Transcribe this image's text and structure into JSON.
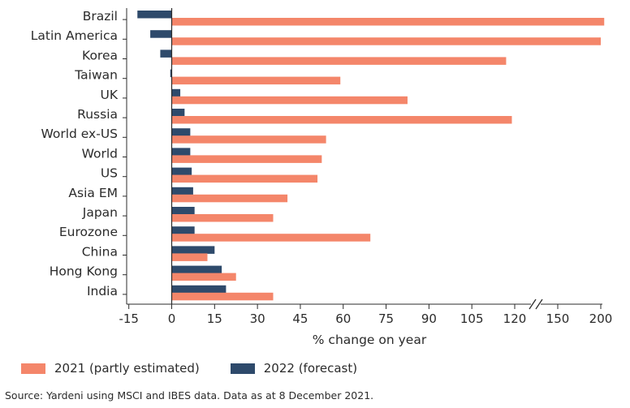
{
  "chart_data": {
    "type": "bar",
    "orientation": "horizontal",
    "categories": [
      "Brazil",
      "Latin America",
      "Korea",
      "Taiwan",
      "UK",
      "Russia",
      "World ex-US",
      "World",
      "US",
      "Asia EM",
      "Japan",
      "Eurozone",
      "China",
      "Hong Kong",
      "India"
    ],
    "series": [
      {
        "name": "2021 (partly estimated)",
        "color": "#f4866a",
        "values": [
          204,
          200,
          117,
          59,
          82.5,
          119,
          54,
          52.5,
          51,
          40.5,
          35.5,
          69.5,
          12.5,
          22.5,
          35.5
        ]
      },
      {
        "name": "2022 (forecast)",
        "color": "#2e4a6b",
        "values": [
          -12,
          -7.5,
          -4,
          -0.5,
          3,
          4.5,
          6.5,
          6.5,
          7,
          7.5,
          8,
          8,
          15,
          17.5,
          19
        ]
      }
    ],
    "xlabel": "% change on year",
    "xticks": [
      "-15",
      "0",
      "15",
      "30",
      "45",
      "60",
      "75",
      "90",
      "105",
      "120",
      "150",
      "200"
    ],
    "x_axis": "broken after 120, continuing 150 to 200",
    "legend_position": "bottom-left",
    "grid": false
  },
  "source": "Source: Yardeni using MSCI and IBES data. Data as at 8 December 2021."
}
